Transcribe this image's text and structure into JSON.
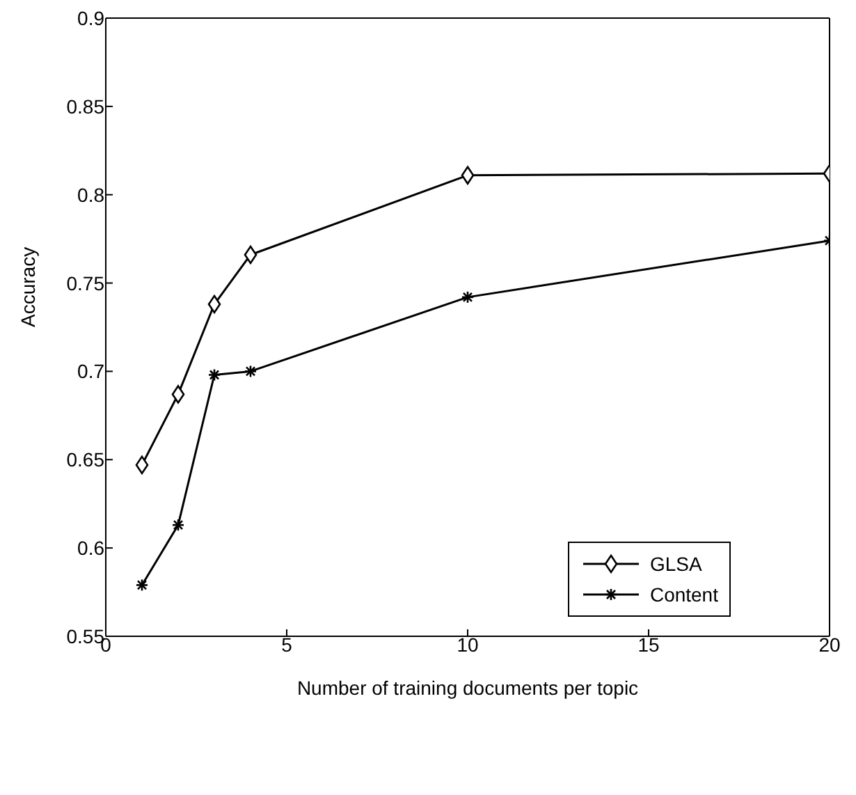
{
  "chart_data": {
    "type": "line",
    "xlabel": "Number of training documents per topic",
    "ylabel": "Accuracy",
    "xlim": [
      0,
      20
    ],
    "xticks": [
      0,
      5,
      10,
      15,
      20
    ],
    "ylim": [
      0.55,
      0.9
    ],
    "yticks": [
      0.55,
      0.6,
      0.65,
      0.7,
      0.75,
      0.8,
      0.85,
      0.9
    ],
    "legend": "bottom right",
    "line_style": "solid",
    "series": [
      {
        "name": "GLSA",
        "color": "#000000",
        "marker": "diamond",
        "x": [
          1,
          2,
          3,
          4,
          10,
          20
        ],
        "values": [
          0.647,
          0.687,
          0.738,
          0.766,
          0.811,
          0.812
        ]
      },
      {
        "name": "Content",
        "color": "#000000",
        "marker": "cross",
        "x": [
          1,
          2,
          3,
          4,
          10,
          20
        ],
        "values": [
          0.579,
          0.613,
          0.698,
          0.7,
          0.742,
          0.774
        ]
      }
    ]
  }
}
